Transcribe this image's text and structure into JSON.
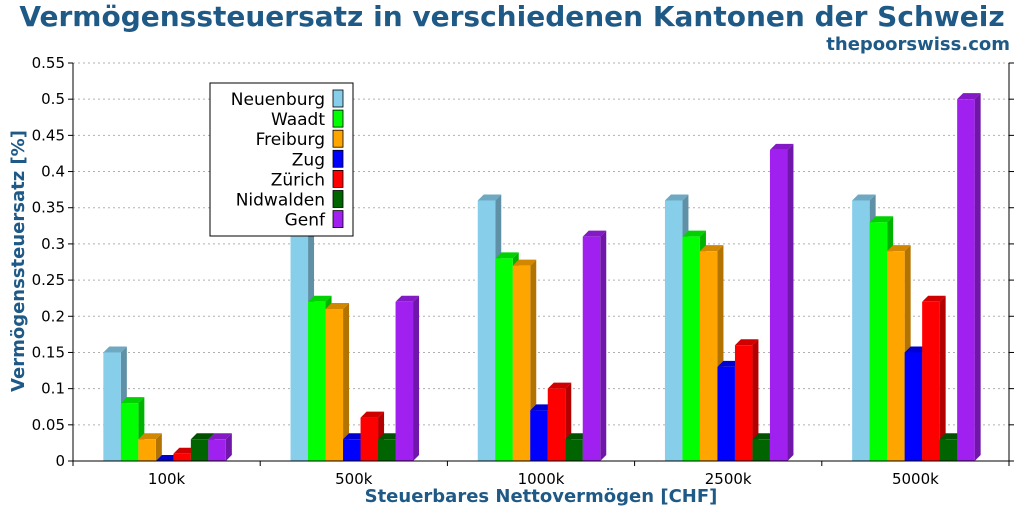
{
  "title": "Vermögenssteuersatz in verschiedenen Kantonen der Schweiz",
  "source": "thepoorswiss.com",
  "chart_data": {
    "type": "bar",
    "title": "Vermögenssteuersatz in verschiedenen Kantonen der Schweiz",
    "xlabel": "Steuerbares Nettovermögen [CHF]",
    "ylabel": "Vermögenssteuersatz [%]",
    "ylim": [
      0,
      0.55
    ],
    "yticks": [
      "0",
      "0.05",
      "0.1",
      "0.15",
      "0.2",
      "0.25",
      "0.3",
      "0.35",
      "0.4",
      "0.45",
      "0.5",
      "0.55"
    ],
    "grid": true,
    "legend_position": "top-left",
    "categories": [
      "100k",
      "500k",
      "1000k",
      "2500k",
      "5000k"
    ],
    "series": [
      {
        "name": "Neuenburg",
        "color": "#87ceeb",
        "values": [
          0.15,
          0.31,
          0.36,
          0.36,
          0.36
        ]
      },
      {
        "name": "Waadt",
        "color": "#00ff00",
        "values": [
          0.08,
          0.22,
          0.28,
          0.31,
          0.33
        ]
      },
      {
        "name": "Freiburg",
        "color": "#ffa500",
        "values": [
          0.03,
          0.21,
          0.27,
          0.29,
          0.29
        ]
      },
      {
        "name": "Zug",
        "color": "#0000ff",
        "values": [
          0.0,
          0.03,
          0.07,
          0.13,
          0.15
        ]
      },
      {
        "name": "Zürich",
        "color": "#ff0000",
        "values": [
          0.01,
          0.06,
          0.1,
          0.16,
          0.22
        ]
      },
      {
        "name": "Nidwalden",
        "color": "#006400",
        "values": [
          0.03,
          0.03,
          0.03,
          0.03,
          0.03
        ]
      },
      {
        "name": "Genf",
        "color": "#a020f0",
        "values": [
          0.03,
          0.22,
          0.31,
          0.43,
          0.5
        ]
      }
    ]
  }
}
